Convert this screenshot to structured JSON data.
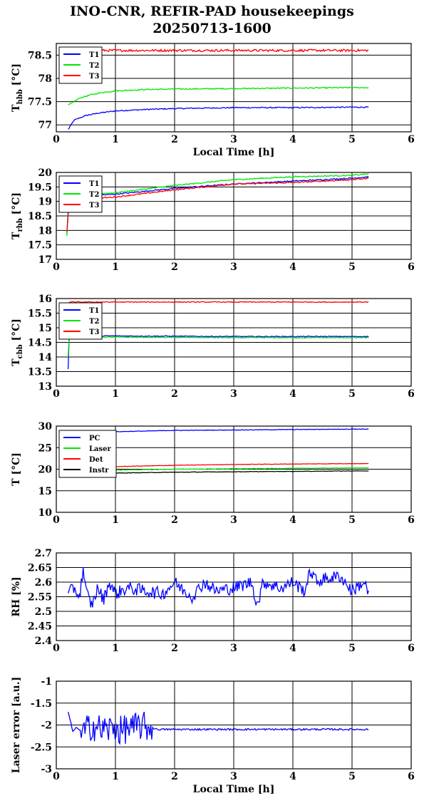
{
  "title": {
    "line1": "INO-CNR, REFIR-PAD housekeepings",
    "line2": "20250713-1600"
  },
  "colors": {
    "blue": "#0000ff",
    "green": "#00e600",
    "red": "#ff0000",
    "black": "#000000"
  },
  "chart_data": [
    {
      "type": "line",
      "ylabel": {
        "main": "T",
        "sub": "hbb",
        "unit": " [°C]"
      },
      "xlabel": "Local Time [h]",
      "xlim": [
        0,
        6
      ],
      "ylim": [
        76.85,
        78.75
      ],
      "xticks": [
        "0",
        "1",
        "2",
        "3",
        "4",
        "5",
        "6"
      ],
      "yticks": [
        {
          "v": 77,
          "t": "77"
        },
        {
          "v": 77.5,
          "t": "77.5"
        },
        {
          "v": 78,
          "t": "78"
        },
        {
          "v": 78.5,
          "t": "78.5"
        }
      ],
      "grid": true,
      "legend": "top-left",
      "series": [
        {
          "name": "T1",
          "color": "#0000ff",
          "x": [
            0.2,
            0.25,
            0.3,
            0.4,
            0.5,
            0.7,
            1.0,
            1.5,
            2.0,
            3.0,
            4.0,
            5.0,
            5.28
          ],
          "y": [
            76.9,
            77.0,
            77.1,
            77.15,
            77.2,
            77.25,
            77.3,
            77.33,
            77.35,
            77.37,
            77.37,
            77.38,
            77.38
          ],
          "noise": 0.012
        },
        {
          "name": "T2",
          "color": "#00e600",
          "x": [
            0.2,
            0.3,
            0.4,
            0.6,
            0.8,
            1.0,
            1.5,
            2.0,
            3.0,
            4.0,
            5.0,
            5.28
          ],
          "y": [
            77.42,
            77.5,
            77.58,
            77.65,
            77.7,
            77.73,
            77.76,
            77.77,
            77.78,
            77.79,
            77.8,
            77.8
          ],
          "noise": 0.012
        },
        {
          "name": "T3",
          "color": "#ff0000",
          "x": [
            0.2,
            5.28
          ],
          "y": [
            78.6,
            78.6
          ],
          "noise": 0.025
        }
      ]
    },
    {
      "type": "line",
      "ylabel": {
        "main": "T",
        "sub": "rbb",
        "unit": " [°C]"
      },
      "xlim": [
        0,
        6
      ],
      "ylim": [
        17,
        20
      ],
      "xticks": [
        "0",
        "1",
        "2",
        "3",
        "4",
        "5",
        "6"
      ],
      "yticks": [
        {
          "v": 17,
          "t": "17"
        },
        {
          "v": 17.5,
          "t": "17.5"
        },
        {
          "v": 18,
          "t": "18"
        },
        {
          "v": 18.5,
          "t": "18.5"
        },
        {
          "v": 19,
          "t": "19"
        },
        {
          "v": 19.5,
          "t": "19.5"
        },
        {
          "v": 20,
          "t": "20"
        }
      ],
      "grid": true,
      "legend": "top-left",
      "series": [
        {
          "name": "T1",
          "color": "#0000ff",
          "x": [
            0.18,
            0.2,
            0.22,
            0.4,
            0.6,
            1.0,
            2.0,
            3.0,
            4.0,
            5.0,
            5.28
          ],
          "y": [
            17.9,
            18.7,
            19.1,
            19.15,
            19.2,
            19.25,
            19.45,
            19.6,
            19.7,
            19.8,
            19.85
          ],
          "noise": 0.02
        },
        {
          "name": "T2",
          "color": "#00e600",
          "x": [
            0.18,
            0.2,
            0.22,
            0.4,
            0.6,
            1.0,
            2.0,
            3.0,
            4.0,
            5.0,
            5.28
          ],
          "y": [
            17.8,
            18.6,
            19.15,
            19.2,
            19.25,
            19.3,
            19.55,
            19.75,
            19.85,
            19.9,
            19.95
          ],
          "noise": 0.02
        },
        {
          "name": "T3",
          "color": "#ff0000",
          "x": [
            0.18,
            0.2,
            0.22,
            0.4,
            0.6,
            1.0,
            2.0,
            3.0,
            4.0,
            5.0,
            5.28
          ],
          "y": [
            17.95,
            18.5,
            19.0,
            19.05,
            19.1,
            19.15,
            19.4,
            19.6,
            19.65,
            19.75,
            19.8
          ],
          "noise": 0.02
        }
      ]
    },
    {
      "type": "line",
      "ylabel": {
        "main": "T",
        "sub": "cbb",
        "unit": " [°C]"
      },
      "xlim": [
        0,
        6
      ],
      "ylim": [
        13,
        16
      ],
      "xticks": [
        "0",
        "1",
        "2",
        "3",
        "4",
        "5",
        "6"
      ],
      "yticks": [
        {
          "v": 13,
          "t": "13"
        },
        {
          "v": 13.5,
          "t": "13.5"
        },
        {
          "v": 14,
          "t": "14"
        },
        {
          "v": 14.5,
          "t": "14.5"
        },
        {
          "v": 15,
          "t": "15"
        },
        {
          "v": 15.5,
          "t": "15.5"
        },
        {
          "v": 16,
          "t": "16"
        }
      ],
      "grid": true,
      "legend": "top-left",
      "series": [
        {
          "name": "T1",
          "color": "#0000ff",
          "x": [
            0.2,
            0.21,
            0.22,
            0.3,
            1.0,
            3.0,
            5.28
          ],
          "y": [
            13.6,
            14.3,
            14.72,
            14.72,
            14.72,
            14.7,
            14.7
          ],
          "noise": 0.015
        },
        {
          "name": "T2",
          "color": "#00e600",
          "x": [
            0.2,
            0.21,
            0.22,
            0.3,
            1.0,
            3.0,
            5.28
          ],
          "y": [
            14.0,
            14.5,
            14.68,
            14.68,
            14.68,
            14.66,
            14.66
          ],
          "noise": 0.015
        },
        {
          "name": "T3",
          "color": "#ff0000",
          "x": [
            0.2,
            0.22,
            1.0,
            3.0,
            5.28
          ],
          "y": [
            15.85,
            15.88,
            15.88,
            15.88,
            15.88
          ],
          "noise": 0.015
        }
      ]
    },
    {
      "type": "line",
      "ylabel": {
        "main": "T [°C]",
        "sub": "",
        "unit": ""
      },
      "xlim": [
        0,
        6
      ],
      "ylim": [
        10,
        30
      ],
      "xticks": [
        "0",
        "1",
        "2",
        "3",
        "4",
        "5",
        "6"
      ],
      "yticks": [
        {
          "v": 10,
          "t": "10"
        },
        {
          "v": 15,
          "t": "15"
        },
        {
          "v": 20,
          "t": "20"
        },
        {
          "v": 25,
          "t": "25"
        },
        {
          "v": 30,
          "t": "30"
        }
      ],
      "grid": true,
      "legend": "top-left",
      "series": [
        {
          "name": "PC",
          "color": "#0000ff",
          "x": [
            0.2,
            0.5,
            1.0,
            2.0,
            3.0,
            4.0,
            5.0,
            5.28
          ],
          "y": [
            28.3,
            28.5,
            28.7,
            29.0,
            29.1,
            29.2,
            29.3,
            29.3
          ],
          "noise": 0.06
        },
        {
          "name": "Laser",
          "color": "#00e600",
          "x": [
            0.2,
            0.5,
            1.0,
            2.0,
            3.0,
            4.0,
            5.0,
            5.28
          ],
          "y": [
            19.6,
            19.7,
            19.8,
            20.0,
            20.1,
            20.2,
            20.3,
            20.3
          ],
          "noise": 0.05
        },
        {
          "name": "Det",
          "color": "#ff0000",
          "x": [
            0.2,
            0.5,
            1.0,
            2.0,
            3.0,
            4.0,
            5.0,
            5.28
          ],
          "y": [
            20.2,
            20.4,
            20.6,
            20.9,
            21.1,
            21.2,
            21.3,
            21.3
          ],
          "noise": 0.05
        },
        {
          "name": "Instr",
          "color": "#000000",
          "x": [
            0.2,
            0.5,
            1.0,
            2.0,
            3.0,
            4.0,
            5.0,
            5.28
          ],
          "y": [
            18.9,
            19.0,
            19.1,
            19.3,
            19.4,
            19.5,
            19.6,
            19.6
          ],
          "noise": 0.05
        }
      ]
    },
    {
      "type": "line",
      "ylabel": {
        "main": "RH [%]",
        "sub": "",
        "unit": ""
      },
      "xlim": [
        0,
        6
      ],
      "ylim": [
        2.4,
        2.7
      ],
      "xticks": [
        "0",
        "1",
        "2",
        "3",
        "4",
        "5",
        "6"
      ],
      "yticks": [
        {
          "v": 2.4,
          "t": "2.4"
        },
        {
          "v": 2.45,
          "t": "2.45"
        },
        {
          "v": 2.5,
          "t": "2.5"
        },
        {
          "v": 2.55,
          "t": "2.55"
        },
        {
          "v": 2.6,
          "t": "2.6"
        },
        {
          "v": 2.65,
          "t": "2.65"
        },
        {
          "v": 2.7,
          "t": "2.7"
        }
      ],
      "grid": true,
      "legend": "none",
      "series": [
        {
          "color": "#0000ff",
          "x": [
            0.2,
            0.3,
            0.4,
            0.45,
            0.5,
            0.6,
            0.7,
            0.8,
            0.9,
            1.0,
            1.2,
            1.5,
            1.8,
            2.0,
            2.1,
            2.3,
            2.5,
            2.7,
            3.0,
            3.3,
            3.4,
            3.5,
            3.8,
            4.0,
            4.2,
            4.3,
            4.4,
            4.5,
            4.8,
            5.0,
            5.2,
            5.28
          ],
          "y": [
            2.56,
            2.58,
            2.55,
            2.65,
            2.57,
            2.52,
            2.58,
            2.54,
            2.6,
            2.56,
            2.58,
            2.57,
            2.56,
            2.6,
            2.58,
            2.55,
            2.6,
            2.57,
            2.58,
            2.6,
            2.52,
            2.6,
            2.58,
            2.6,
            2.57,
            2.64,
            2.6,
            2.61,
            2.62,
            2.57,
            2.6,
            2.56
          ],
          "noise": 0.022
        }
      ]
    },
    {
      "type": "line",
      "ylabel": {
        "main": "Laser error [a.u.]",
        "sub": "",
        "unit": ""
      },
      "xlabel": "Local Time [h]",
      "xlim": [
        0,
        6
      ],
      "ylim": [
        -3,
        -1
      ],
      "xticks": [
        "0",
        "1",
        "2",
        "3",
        "4",
        "5",
        "6"
      ],
      "yticks": [
        {
          "v": -3,
          "t": "-3"
        },
        {
          "v": -2.5,
          "t": "-2.5"
        },
        {
          "v": -2,
          "t": "-2"
        },
        {
          "v": -1.5,
          "t": "-1.5"
        },
        {
          "v": -1,
          "t": "-1"
        }
      ],
      "grid": true,
      "legend": "none",
      "series": [
        {
          "color": "#0000ff",
          "x": [
            0.2,
            0.28,
            0.35,
            0.45,
            0.6,
            0.75,
            0.9,
            1.0,
            1.1,
            1.2,
            1.3,
            1.4,
            1.5,
            1.6,
            1.7,
            2.0,
            3.0,
            4.0,
            5.0,
            5.28
          ],
          "y": [
            -1.7,
            -2.15,
            -2.05,
            -2.2,
            -2.0,
            -2.1,
            -2.1,
            -2.05,
            -2.15,
            -2.05,
            -2.1,
            -2.0,
            -2.05,
            -2.05,
            -2.1,
            -2.1,
            -2.1,
            -2.1,
            -2.1,
            -2.1
          ],
          "noise": 0.02,
          "burst": [
            0.42,
            1.62,
            0.35
          ]
        }
      ]
    }
  ]
}
